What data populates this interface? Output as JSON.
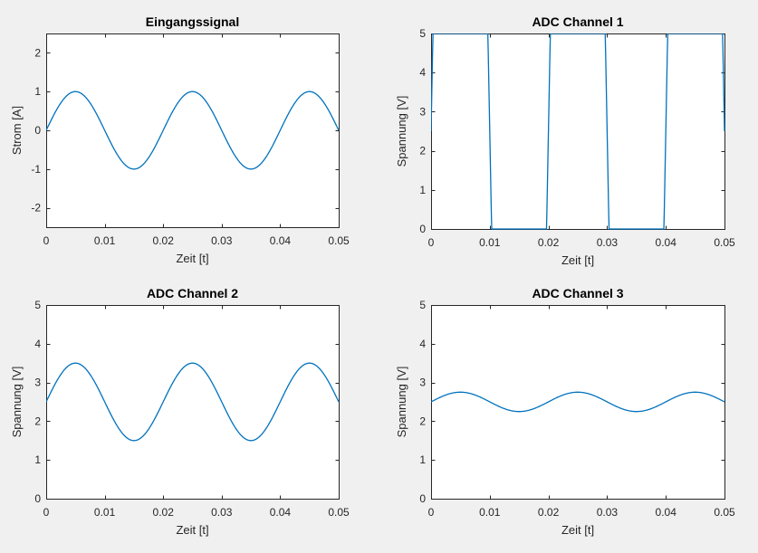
{
  "chart_data": [
    {
      "type": "line",
      "title": "Eingangssignal",
      "xlabel": "Zeit [t]",
      "ylabel": "Strom [A]",
      "xlim": [
        0,
        0.05
      ],
      "ylim": [
        -2.5,
        2.5
      ],
      "xticks": [
        "0",
        "0.01",
        "0.02",
        "0.03",
        "0.04",
        "0.05"
      ],
      "yticks": [
        "-2",
        "-1",
        "0",
        "1",
        "2"
      ],
      "series": [
        {
          "function": "sine",
          "frequency_hz": 50,
          "amplitude": 1.0,
          "offset": 0.0,
          "clip": null,
          "x": [
            0,
            0.005,
            0.01,
            0.015,
            0.02,
            0.025,
            0.03,
            0.035,
            0.04,
            0.045,
            0.05
          ],
          "y": [
            0,
            1,
            0,
            -1,
            0,
            1,
            0,
            -1,
            0,
            1,
            0
          ]
        }
      ],
      "grid": false,
      "line_color": "#0072BD"
    },
    {
      "type": "line",
      "title": "ADC Channel 1",
      "xlabel": "Zeit [t]",
      "ylabel": "Spannung [V]",
      "xlim": [
        0,
        0.05
      ],
      "ylim": [
        0,
        5
      ],
      "xticks": [
        "0",
        "0.01",
        "0.02",
        "0.03",
        "0.04",
        "0.05"
      ],
      "yticks": [
        "0",
        "1",
        "2",
        "3",
        "4",
        "5"
      ],
      "series": [
        {
          "function": "sine",
          "frequency_hz": 50,
          "amplitude": 25.0,
          "offset": 2.5,
          "clip": [
            0,
            5
          ],
          "x": [
            0,
            0.005,
            0.01,
            0.015,
            0.02,
            0.025,
            0.03,
            0.035,
            0.04,
            0.045,
            0.05
          ],
          "y": [
            2.5,
            5,
            2.5,
            0,
            2.5,
            5,
            2.5,
            0,
            2.5,
            5,
            2.5
          ]
        }
      ],
      "grid": false,
      "line_color": "#0072BD"
    },
    {
      "type": "line",
      "title": "ADC Channel 2",
      "xlabel": "Zeit [t]",
      "ylabel": "Spannung [V]",
      "xlim": [
        0,
        0.05
      ],
      "ylim": [
        0,
        5
      ],
      "xticks": [
        "0",
        "0.01",
        "0.02",
        "0.03",
        "0.04",
        "0.05"
      ],
      "yticks": [
        "0",
        "1",
        "2",
        "3",
        "4",
        "5"
      ],
      "series": [
        {
          "function": "sine",
          "frequency_hz": 50,
          "amplitude": 1.0,
          "offset": 2.5,
          "clip": null,
          "x": [
            0,
            0.005,
            0.01,
            0.015,
            0.02,
            0.025,
            0.03,
            0.035,
            0.04,
            0.045,
            0.05
          ],
          "y": [
            2.5,
            3.5,
            2.5,
            1.5,
            2.5,
            3.5,
            2.5,
            1.5,
            2.5,
            3.5,
            2.5
          ]
        }
      ],
      "grid": false,
      "line_color": "#0072BD"
    },
    {
      "type": "line",
      "title": "ADC Channel 3",
      "xlabel": "Zeit [t]",
      "ylabel": "Spannung [V]",
      "xlim": [
        0,
        0.05
      ],
      "ylim": [
        0,
        5
      ],
      "xticks": [
        "0",
        "0.01",
        "0.02",
        "0.03",
        "0.04",
        "0.05"
      ],
      "yticks": [
        "0",
        "1",
        "2",
        "3",
        "4",
        "5"
      ],
      "series": [
        {
          "function": "sine",
          "frequency_hz": 50,
          "amplitude": 0.25,
          "offset": 2.5,
          "clip": null,
          "x": [
            0,
            0.005,
            0.01,
            0.015,
            0.02,
            0.025,
            0.03,
            0.035,
            0.04,
            0.045,
            0.05
          ],
          "y": [
            2.5,
            2.75,
            2.5,
            2.25,
            2.5,
            2.75,
            2.5,
            2.25,
            2.5,
            2.75,
            2.5
          ]
        }
      ],
      "grid": false,
      "line_color": "#0072BD"
    }
  ]
}
